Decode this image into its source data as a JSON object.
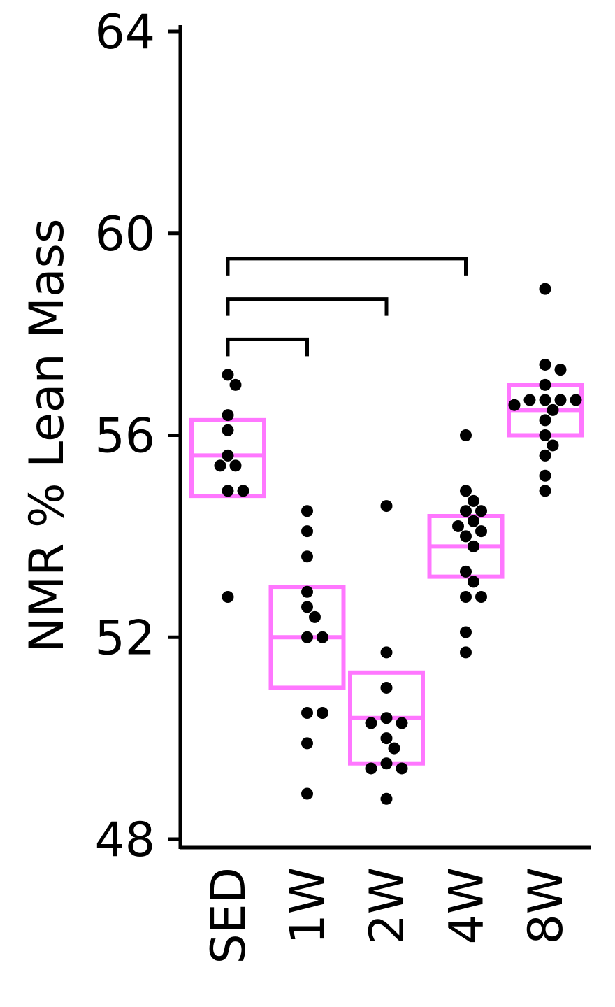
{
  "chart_data": {
    "type": "box-dot",
    "ylabel": "NMR % Lean Mass",
    "xlabel": "",
    "ylim": [
      48,
      64
    ],
    "yticks": [
      48,
      52,
      56,
      60,
      64
    ],
    "categories": [
      "SED",
      "1W",
      "2W",
      "4W",
      "8W"
    ],
    "boxes": [
      {
        "category": "SED",
        "q1": 54.8,
        "median": 55.6,
        "q3": 56.3
      },
      {
        "category": "1W",
        "q1": 51.0,
        "median": 52.0,
        "q3": 53.0
      },
      {
        "category": "2W",
        "q1": 49.5,
        "median": 50.4,
        "q3": 51.3
      },
      {
        "category": "4W",
        "q1": 53.2,
        "median": 53.8,
        "q3": 54.4
      },
      {
        "category": "8W",
        "q1": 56.0,
        "median": 56.5,
        "q3": 57.0
      }
    ],
    "points": {
      "SED": [
        57.2,
        57.0,
        56.4,
        56.1,
        55.6,
        55.4,
        55.4,
        54.9,
        54.9,
        52.8
      ],
      "1W": [
        54.5,
        54.1,
        53.6,
        52.9,
        52.6,
        52.4,
        52.0,
        52.0,
        50.5,
        50.5,
        49.9,
        48.9
      ],
      "2W": [
        54.6,
        51.7,
        51.0,
        50.4,
        50.3,
        50.3,
        50.0,
        49.8,
        49.5,
        49.4,
        49.4,
        48.8
      ],
      "4W": [
        56.0,
        54.9,
        54.7,
        54.5,
        54.5,
        54.3,
        54.2,
        54.1,
        54.0,
        53.8,
        53.3,
        53.1,
        52.8,
        52.8,
        52.1,
        51.7
      ],
      "8W": [
        58.9,
        57.4,
        57.3,
        57.0,
        56.7,
        56.7,
        56.7,
        56.7,
        56.6,
        56.5,
        56.3,
        56.0,
        55.8,
        55.6,
        55.2,
        54.9
      ]
    },
    "significance_brackets": [
      {
        "from": "SED",
        "to": "1W",
        "y": 57.9
      },
      {
        "from": "SED",
        "to": "2W",
        "y": 58.7
      },
      {
        "from": "SED",
        "to": "4W",
        "y": 59.5
      }
    ],
    "colors": {
      "box": "#ff77ff",
      "points": "#000000",
      "axis": "#000000"
    },
    "grid": false
  }
}
